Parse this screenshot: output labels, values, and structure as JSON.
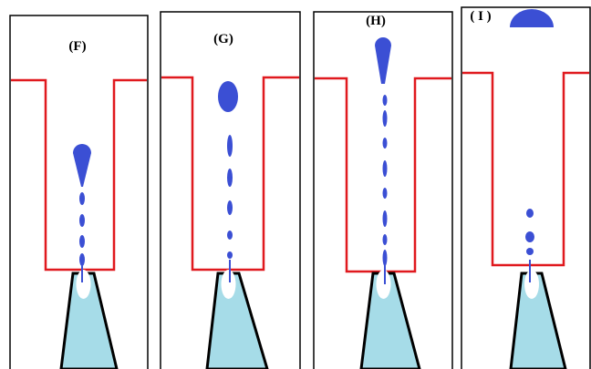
{
  "panels": [
    {
      "label": "(F)"
    },
    {
      "label": "(G)"
    },
    {
      "label": "(H)"
    },
    {
      "label": "( I )"
    }
  ]
}
